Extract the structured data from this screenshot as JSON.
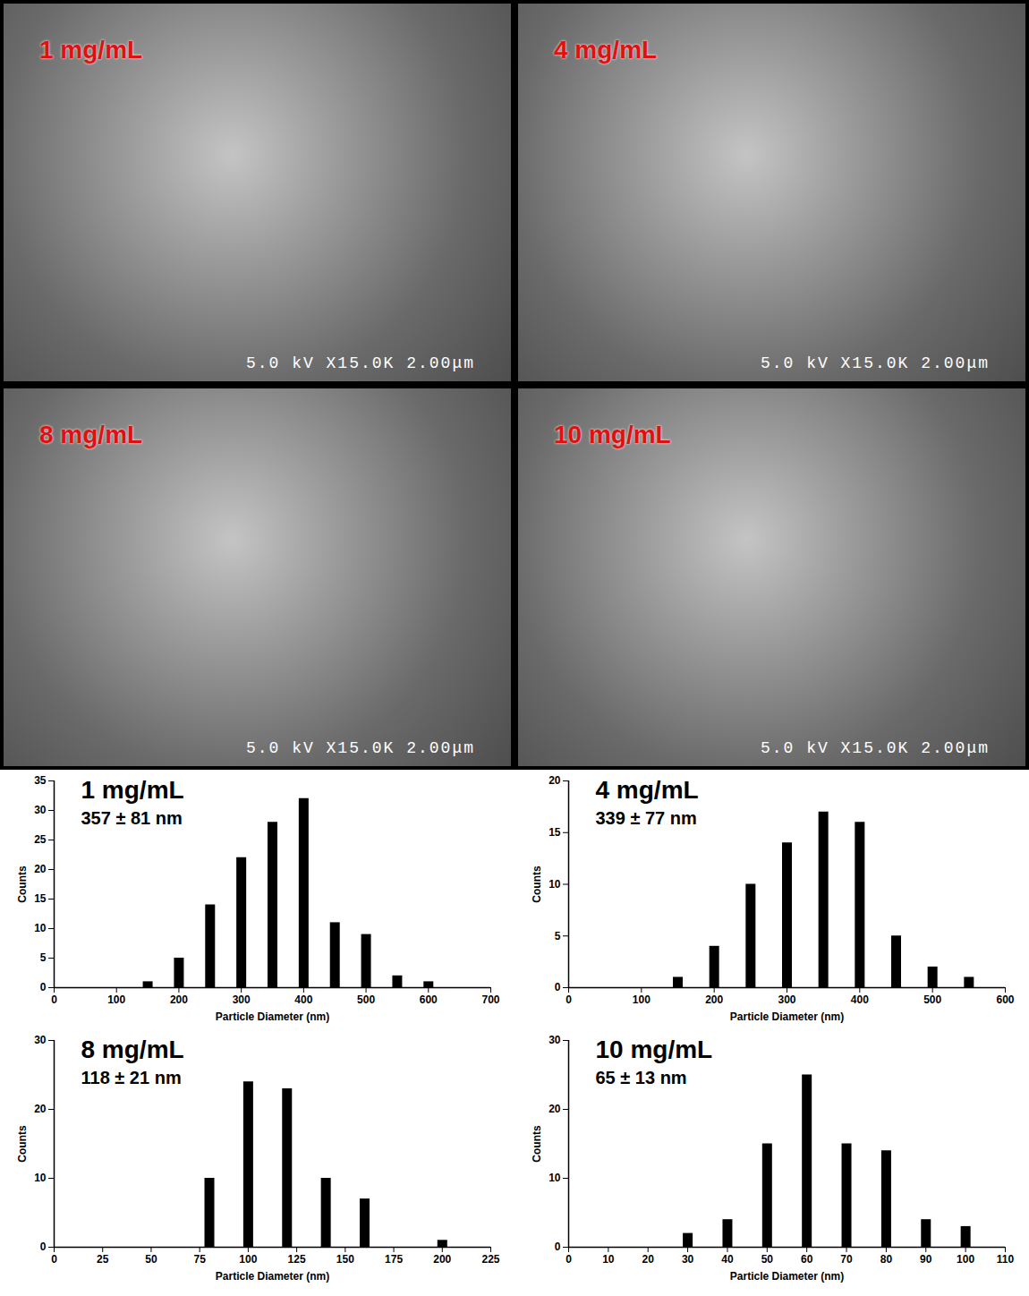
{
  "micrographs": [
    {
      "label": "1 mg/mL",
      "caption": "5.0 kV X15.0K 2.00μm"
    },
    {
      "label": "4 mg/mL",
      "caption": "5.0 kV X15.0K 2.00μm"
    },
    {
      "label": "8 mg/mL",
      "caption": "5.0 kV X15.0K 2.00μm"
    },
    {
      "label": "10 mg/mL",
      "caption": "5.0 kV X15.0K 2.00μm"
    }
  ],
  "chart_data": [
    {
      "type": "bar",
      "title": "1 mg/mL",
      "subtitle": "357 ± 81 nm",
      "x": [
        150,
        200,
        250,
        300,
        350,
        400,
        450,
        500,
        550,
        600
      ],
      "values": [
        1,
        5,
        14,
        22,
        28,
        32,
        11,
        9,
        2,
        1
      ],
      "color": "#000000",
      "xlabel": "Particle Diameter (nm)",
      "ylabel": "Counts",
      "xlim": [
        0,
        700
      ],
      "xticks": [
        0,
        100,
        200,
        300,
        400,
        500,
        600,
        700
      ],
      "ylim": [
        0,
        35
      ],
      "yticks": [
        0,
        5,
        10,
        15,
        20,
        25,
        30,
        35
      ]
    },
    {
      "type": "bar",
      "title": "4 mg/mL",
      "subtitle": "339 ± 77 nm",
      "x": [
        150,
        200,
        250,
        300,
        350,
        400,
        450,
        500,
        550
      ],
      "values": [
        1,
        4,
        10,
        14,
        17,
        16,
        5,
        2,
        1
      ],
      "color": "#000000",
      "xlabel": "Particle Diameter (nm)",
      "ylabel": "Counts",
      "xlim": [
        0,
        600
      ],
      "xticks": [
        0,
        100,
        200,
        300,
        400,
        500,
        600
      ],
      "ylim": [
        0,
        20
      ],
      "yticks": [
        0,
        5,
        10,
        15,
        20
      ]
    },
    {
      "type": "bar",
      "title": "8 mg/mL",
      "subtitle": "118 ± 21 nm",
      "x": [
        80,
        100,
        120,
        140,
        160,
        200
      ],
      "values": [
        10,
        24,
        23,
        10,
        7,
        1
      ],
      "color": "#000000",
      "xlabel": "Particle Diameter (nm)",
      "ylabel": "Counts",
      "xlim": [
        0,
        225
      ],
      "xticks": [
        0,
        25,
        50,
        75,
        100,
        125,
        150,
        175,
        200,
        225
      ],
      "ylim": [
        0,
        30
      ],
      "yticks": [
        0,
        10,
        20,
        30
      ]
    },
    {
      "type": "bar",
      "title": "10 mg/mL",
      "subtitle": "65 ± 13 nm",
      "x": [
        30,
        40,
        50,
        60,
        70,
        80,
        90,
        100
      ],
      "values": [
        2,
        4,
        15,
        25,
        15,
        14,
        4,
        3
      ],
      "color": "#000000",
      "xlabel": "Particle Diameter (nm)",
      "ylabel": "Counts",
      "xlim": [
        0,
        110
      ],
      "xticks": [
        0,
        10,
        20,
        30,
        40,
        50,
        60,
        70,
        80,
        90,
        100,
        110
      ],
      "ylim": [
        0,
        30
      ],
      "yticks": [
        0,
        10,
        20,
        30
      ]
    }
  ]
}
